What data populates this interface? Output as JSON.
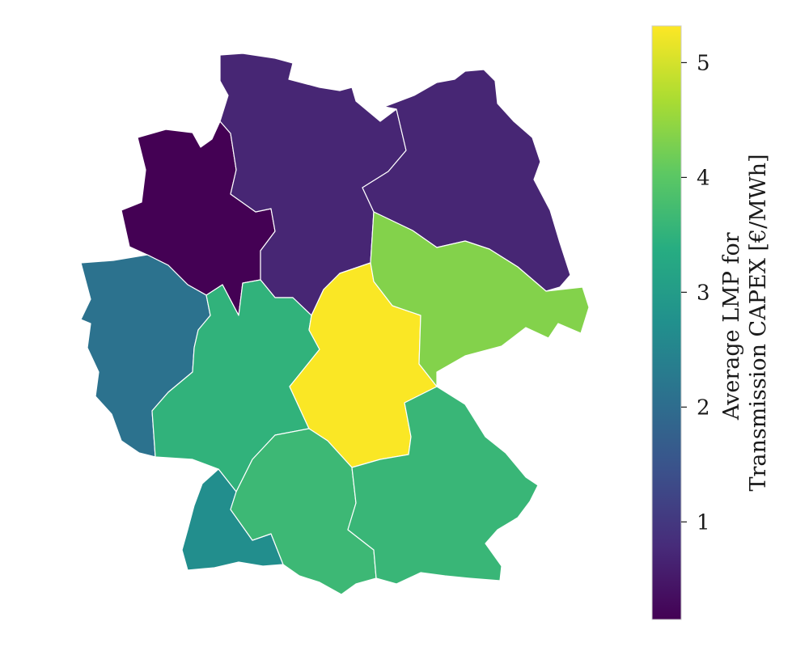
{
  "map": {
    "colormap": "viridis",
    "regions": [
      {
        "id": "north-west",
        "value": 0.15
      },
      {
        "id": "north",
        "value": 0.7
      },
      {
        "id": "north-east",
        "value": 0.7
      },
      {
        "id": "west",
        "value": 2.1
      },
      {
        "id": "centre-west",
        "value": 3.5
      },
      {
        "id": "centre",
        "value": 5.3
      },
      {
        "id": "east",
        "value": 4.35
      },
      {
        "id": "south-west",
        "value": 2.7
      },
      {
        "id": "south",
        "value": 3.65
      },
      {
        "id": "south-east",
        "value": 3.6
      }
    ]
  },
  "colorbar": {
    "title_line1": "Average LMP for",
    "title_line2": "Transmission CAPEX [€/MWh]",
    "min": 0.15,
    "max": 5.32,
    "ticks": [
      "1",
      "2",
      "3",
      "4",
      "5"
    ],
    "stops": [
      "#440154",
      "#472c7a",
      "#3b518b",
      "#2c718e",
      "#21908d",
      "#27ad81",
      "#5cc863",
      "#aadc32",
      "#fde725"
    ]
  }
}
